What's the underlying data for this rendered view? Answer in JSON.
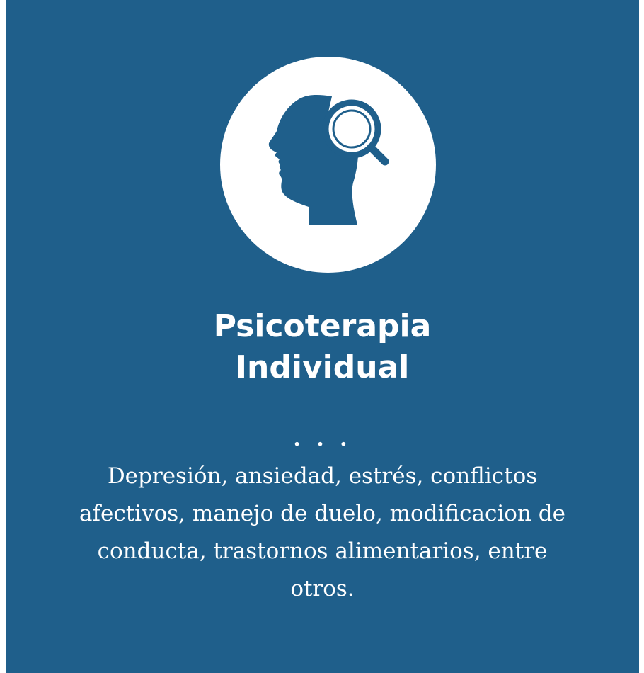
{
  "card": {
    "background_color": "#1f5f8b",
    "icon": "head-magnifier-icon",
    "title_line1": "Psicoterapia",
    "title_line2": "Individual",
    "separator": ". . .",
    "description": "Depresión, ansiedad, estrés, conflictos afectivos, manejo de duelo, modificacion de conducta, trastornos alimentarios, entre otros."
  }
}
